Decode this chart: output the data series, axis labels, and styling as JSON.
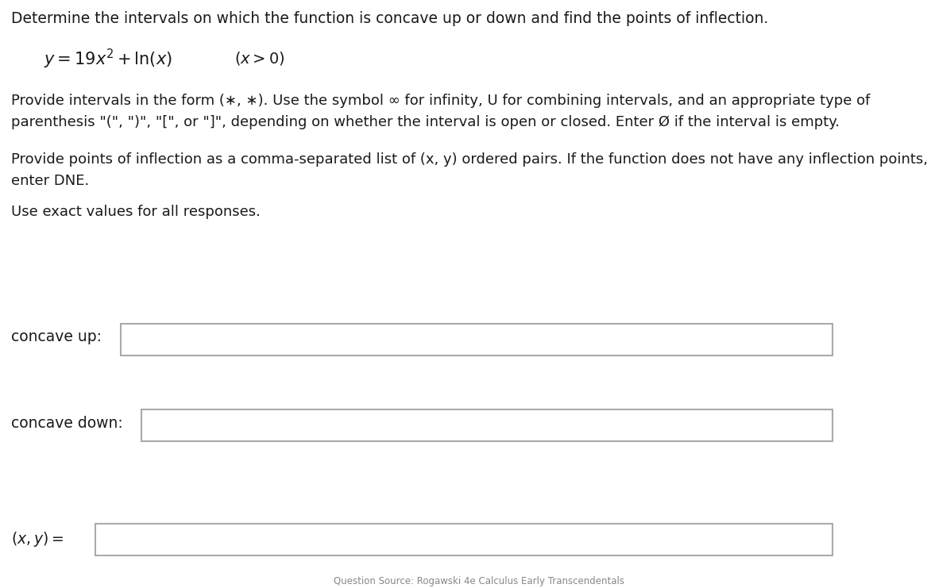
{
  "title_line": "Determine the intervals on which the function is concave up or down and find the points of inflection.",
  "para1_line1": "Provide intervals in the form (∗, ∗). Use the symbol ∞ for infinity, U for combining intervals, and an appropriate type of",
  "para1_line2": "parenthesis \"(\", \")\", \"[\", or \"]\", depending on whether the interval is open or closed. Enter Ø if the interval is empty.",
  "para2_line1": "Provide points of inflection as a comma-separated list of (x, y) ordered pairs. If the function does not have any inflection points,",
  "para2_line2": "enter DNE.",
  "para3": "Use exact values for all responses.",
  "label_concave_up": "concave up:",
  "label_concave_down": "concave down:",
  "label_xy": "(x, y) =",
  "bg_color": "#ffffff",
  "text_color": "#1a1a1a",
  "box_edge_color": "#aaaaaa",
  "box_fill": "#ffffff",
  "font_size_title": 13.5,
  "font_size_body": 13.0,
  "font_size_formula": 15.0,
  "font_size_label": 13.5,
  "font_size_bottom": 8.5,
  "bottom_note": "Question Source: Rogawski 4e Calculus Early Transcendentals"
}
